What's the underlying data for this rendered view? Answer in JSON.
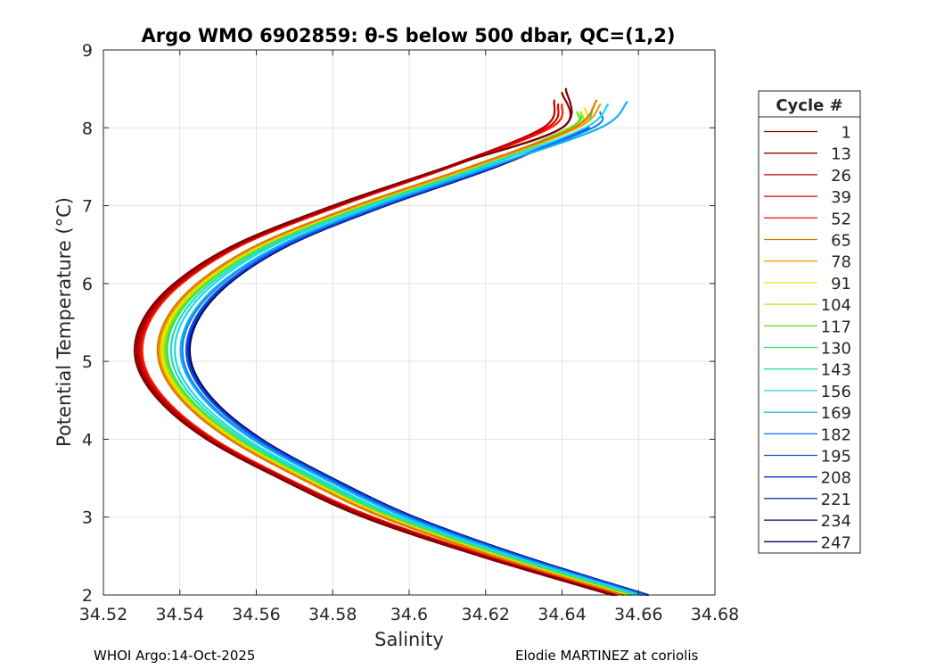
{
  "chart_data": {
    "type": "line",
    "title": "Argo WMO 6902859: θ-S below 500 dbar,  QC=(1,2)",
    "xlabel": "Salinity",
    "ylabel": "Potential Temperature (°C)",
    "xlim": [
      34.52,
      34.68
    ],
    "ylim": [
      2,
      9
    ],
    "xticks": [
      34.52,
      34.54,
      34.56,
      34.58,
      34.6,
      34.62,
      34.64,
      34.66,
      34.68
    ],
    "xtick_labels": [
      "34.52",
      "34.54",
      "34.56",
      "34.58",
      "34.6",
      "34.62",
      "34.64",
      "34.66",
      "34.68"
    ],
    "yticks": [
      2,
      3,
      4,
      5,
      6,
      7,
      8,
      9
    ],
    "ytick_labels": [
      "2",
      "3",
      "4",
      "5",
      "6",
      "7",
      "8",
      "9"
    ],
    "grid": true,
    "legend_title": "Cycle #",
    "legend_position": "right-outside",
    "series": [
      {
        "name": "1",
        "color": "#800000",
        "points": [
          [
            34.653,
            2.0
          ],
          [
            34.6185,
            2.5
          ],
          [
            34.588,
            3.0
          ],
          [
            34.566,
            3.5
          ],
          [
            34.547,
            4.0
          ],
          [
            34.5345,
            4.5
          ],
          [
            34.5285,
            5.0
          ],
          [
            34.53,
            5.5
          ],
          [
            34.5385,
            6.0
          ],
          [
            34.5545,
            6.5
          ],
          [
            34.58,
            7.0
          ],
          [
            34.61,
            7.5
          ],
          [
            34.64,
            8.0
          ],
          [
            34.641,
            8.5
          ]
        ]
      },
      {
        "name": "13",
        "color": "#9b0000",
        "points": [
          [
            34.6535,
            2.0
          ],
          [
            34.619,
            2.5
          ],
          [
            34.589,
            3.0
          ],
          [
            34.5665,
            3.5
          ],
          [
            34.5475,
            4.0
          ],
          [
            34.535,
            4.5
          ],
          [
            34.529,
            5.0
          ],
          [
            34.5305,
            5.5
          ],
          [
            34.539,
            6.0
          ],
          [
            34.555,
            6.5
          ],
          [
            34.581,
            7.0
          ],
          [
            34.61,
            7.5
          ],
          [
            34.64,
            8.0
          ],
          [
            34.64,
            8.45
          ]
        ]
      },
      {
        "name": "26",
        "color": "#c00000",
        "points": [
          [
            34.654,
            2.0
          ],
          [
            34.6195,
            2.5
          ],
          [
            34.5895,
            3.0
          ],
          [
            34.567,
            3.5
          ],
          [
            34.548,
            4.0
          ],
          [
            34.5355,
            4.5
          ],
          [
            34.5295,
            5.0
          ],
          [
            34.531,
            5.5
          ],
          [
            34.5395,
            6.0
          ],
          [
            34.5555,
            6.5
          ],
          [
            34.581,
            7.0
          ],
          [
            34.61,
            7.5
          ],
          [
            34.635,
            8.0
          ],
          [
            34.638,
            8.35
          ]
        ]
      },
      {
        "name": "39",
        "color": "#e00000",
        "points": [
          [
            34.654,
            2.0
          ],
          [
            34.62,
            2.5
          ],
          [
            34.59,
            3.0
          ],
          [
            34.5675,
            3.5
          ],
          [
            34.5485,
            4.0
          ],
          [
            34.536,
            4.5
          ],
          [
            34.53,
            5.0
          ],
          [
            34.5315,
            5.5
          ],
          [
            34.54,
            6.0
          ],
          [
            34.556,
            6.5
          ],
          [
            34.5815,
            7.0
          ],
          [
            34.611,
            7.5
          ],
          [
            34.636,
            8.0
          ],
          [
            34.639,
            8.3
          ]
        ]
      },
      {
        "name": "52",
        "color": "#ff2000",
        "points": [
          [
            34.6545,
            2.0
          ],
          [
            34.6205,
            2.5
          ],
          [
            34.5905,
            3.0
          ],
          [
            34.568,
            3.5
          ],
          [
            34.549,
            4.0
          ],
          [
            34.5365,
            4.5
          ],
          [
            34.5305,
            5.0
          ],
          [
            34.532,
            5.5
          ],
          [
            34.5405,
            6.0
          ],
          [
            34.5565,
            6.5
          ],
          [
            34.582,
            7.0
          ],
          [
            34.611,
            7.5
          ],
          [
            34.637,
            8.0
          ],
          [
            34.64,
            8.3
          ]
        ]
      },
      {
        "name": "65",
        "color": "#d97b00",
        "points": [
          [
            34.656,
            2.0
          ],
          [
            34.622,
            2.5
          ],
          [
            34.593,
            3.0
          ],
          [
            34.5715,
            3.5
          ],
          [
            34.553,
            4.0
          ],
          [
            34.5405,
            4.5
          ],
          [
            34.5345,
            5.0
          ],
          [
            34.536,
            5.5
          ],
          [
            34.5445,
            6.0
          ],
          [
            34.5605,
            6.5
          ],
          [
            34.586,
            7.0
          ],
          [
            34.616,
            7.5
          ],
          [
            34.643,
            8.0
          ],
          [
            34.649,
            8.35
          ]
        ]
      },
      {
        "name": "78",
        "color": "#f0a000",
        "points": [
          [
            34.656,
            2.0
          ],
          [
            34.6225,
            2.5
          ],
          [
            34.5935,
            3.0
          ],
          [
            34.572,
            3.5
          ],
          [
            34.5535,
            4.0
          ],
          [
            34.541,
            4.5
          ],
          [
            34.535,
            5.0
          ],
          [
            34.5365,
            5.5
          ],
          [
            34.545,
            6.0
          ],
          [
            34.561,
            6.5
          ],
          [
            34.5865,
            7.0
          ],
          [
            34.6165,
            7.5
          ],
          [
            34.644,
            8.0
          ],
          [
            34.65,
            8.3
          ]
        ]
      },
      {
        "name": "91",
        "color": "#ffe000",
        "points": [
          [
            34.6565,
            2.0
          ],
          [
            34.623,
            2.5
          ],
          [
            34.594,
            3.0
          ],
          [
            34.5725,
            3.5
          ],
          [
            34.554,
            4.0
          ],
          [
            34.5415,
            4.5
          ],
          [
            34.5355,
            5.0
          ],
          [
            34.537,
            5.5
          ],
          [
            34.5455,
            6.0
          ],
          [
            34.5615,
            6.5
          ],
          [
            34.587,
            7.0
          ],
          [
            34.617,
            7.5
          ],
          [
            34.644,
            8.0
          ],
          [
            34.646,
            8.25
          ]
        ]
      },
      {
        "name": "104",
        "color": "#b0f000",
        "points": [
          [
            34.657,
            2.0
          ],
          [
            34.6235,
            2.5
          ],
          [
            34.5945,
            3.0
          ],
          [
            34.573,
            3.5
          ],
          [
            34.5545,
            4.0
          ],
          [
            34.542,
            4.5
          ],
          [
            34.536,
            5.0
          ],
          [
            34.5375,
            5.5
          ],
          [
            34.546,
            6.0
          ],
          [
            34.562,
            6.5
          ],
          [
            34.587,
            7.0
          ],
          [
            34.617,
            7.5
          ],
          [
            34.643,
            8.0
          ],
          [
            34.645,
            8.2
          ]
        ]
      },
      {
        "name": "117",
        "color": "#70e020",
        "points": [
          [
            34.6575,
            2.0
          ],
          [
            34.624,
            2.5
          ],
          [
            34.595,
            3.0
          ],
          [
            34.5735,
            3.5
          ],
          [
            34.555,
            4.0
          ],
          [
            34.5425,
            4.5
          ],
          [
            34.5365,
            5.0
          ],
          [
            34.538,
            5.5
          ],
          [
            34.5465,
            6.0
          ],
          [
            34.5625,
            6.5
          ],
          [
            34.5875,
            7.0
          ],
          [
            34.617,
            7.5
          ],
          [
            34.642,
            8.0
          ],
          [
            34.644,
            8.2
          ]
        ]
      },
      {
        "name": "130",
        "color": "#30e060",
        "points": [
          [
            34.658,
            2.0
          ],
          [
            34.6245,
            2.5
          ],
          [
            34.5955,
            3.0
          ],
          [
            34.574,
            3.5
          ],
          [
            34.5555,
            4.0
          ],
          [
            34.543,
            4.5
          ],
          [
            34.537,
            5.0
          ],
          [
            34.5385,
            5.5
          ],
          [
            34.547,
            6.0
          ],
          [
            34.563,
            6.5
          ],
          [
            34.588,
            7.0
          ],
          [
            34.6175,
            7.5
          ],
          [
            34.642,
            8.0
          ],
          [
            34.645,
            8.2
          ]
        ]
      },
      {
        "name": "143",
        "color": "#20e0b0",
        "points": [
          [
            34.659,
            2.0
          ],
          [
            34.6255,
            2.5
          ],
          [
            34.5965,
            3.0
          ],
          [
            34.575,
            3.5
          ],
          [
            34.5565,
            4.0
          ],
          [
            34.544,
            4.5
          ],
          [
            34.538,
            5.0
          ],
          [
            34.5395,
            5.5
          ],
          [
            34.548,
            6.0
          ],
          [
            34.564,
            6.5
          ],
          [
            34.589,
            7.0
          ],
          [
            34.6185,
            7.5
          ],
          [
            34.644,
            8.0
          ],
          [
            34.648,
            8.25
          ]
        ]
      },
      {
        "name": "156",
        "color": "#20d8e8",
        "points": [
          [
            34.66,
            2.0
          ],
          [
            34.6265,
            2.5
          ],
          [
            34.5975,
            3.0
          ],
          [
            34.576,
            3.5
          ],
          [
            34.5575,
            4.0
          ],
          [
            34.545,
            4.5
          ],
          [
            34.539,
            5.0
          ],
          [
            34.5405,
            5.5
          ],
          [
            34.549,
            6.0
          ],
          [
            34.565,
            6.5
          ],
          [
            34.59,
            7.0
          ],
          [
            34.6195,
            7.5
          ],
          [
            34.646,
            8.0
          ],
          [
            34.652,
            8.3
          ]
        ]
      },
      {
        "name": "169",
        "color": "#10b0f0",
        "points": [
          [
            34.6605,
            2.0
          ],
          [
            34.6275,
            2.5
          ],
          [
            34.599,
            3.0
          ],
          [
            34.5775,
            3.5
          ],
          [
            34.559,
            4.0
          ],
          [
            34.5465,
            4.5
          ],
          [
            34.5405,
            5.0
          ],
          [
            34.542,
            5.5
          ],
          [
            34.5505,
            6.0
          ],
          [
            34.5665,
            6.5
          ],
          [
            34.5915,
            7.0
          ],
          [
            34.621,
            7.5
          ],
          [
            34.65,
            8.0
          ],
          [
            34.657,
            8.33
          ]
        ]
      },
      {
        "name": "182",
        "color": "#1080f0",
        "points": [
          [
            34.661,
            2.0
          ],
          [
            34.628,
            2.5
          ],
          [
            34.5995,
            3.0
          ],
          [
            34.578,
            3.5
          ],
          [
            34.5595,
            4.0
          ],
          [
            34.547,
            4.5
          ],
          [
            34.541,
            5.0
          ],
          [
            34.5425,
            5.5
          ],
          [
            34.551,
            6.0
          ],
          [
            34.567,
            6.5
          ],
          [
            34.592,
            7.0
          ],
          [
            34.6215,
            7.5
          ],
          [
            34.648,
            8.0
          ],
          [
            34.65,
            8.2
          ]
        ]
      },
      {
        "name": "195",
        "color": "#1050e0",
        "points": [
          [
            34.662,
            2.0
          ],
          [
            34.629,
            2.5
          ],
          [
            34.6005,
            3.0
          ],
          [
            34.579,
            3.5
          ],
          [
            34.5605,
            4.0
          ],
          [
            34.548,
            4.5
          ],
          [
            34.542,
            5.0
          ],
          [
            34.5435,
            5.5
          ],
          [
            34.552,
            6.0
          ],
          [
            34.568,
            6.5
          ],
          [
            34.593,
            7.0
          ],
          [
            34.622,
            7.5
          ],
          [
            34.647,
            8.0
          ]
        ]
      },
      {
        "name": "208",
        "color": "#0830c0",
        "points": [
          [
            34.662,
            2.0
          ],
          [
            34.6292,
            2.5
          ],
          [
            34.6008,
            3.0
          ],
          [
            34.5793,
            3.5
          ],
          [
            34.5608,
            4.0
          ],
          [
            34.5483,
            4.5
          ],
          [
            34.5423,
            5.0
          ],
          [
            34.5438,
            5.5
          ],
          [
            34.5523,
            6.0
          ],
          [
            34.5683,
            6.5
          ],
          [
            34.5933,
            7.0
          ],
          [
            34.6223,
            7.5
          ],
          [
            34.647,
            8.0
          ]
        ]
      },
      {
        "name": "221",
        "color": "#0020a0",
        "points": [
          [
            34.6622,
            2.0
          ],
          [
            34.6294,
            2.5
          ],
          [
            34.601,
            3.0
          ],
          [
            34.5795,
            3.5
          ],
          [
            34.561,
            4.0
          ],
          [
            34.5485,
            4.5
          ],
          [
            34.5425,
            5.0
          ],
          [
            34.544,
            5.5
          ],
          [
            34.5525,
            6.0
          ],
          [
            34.5685,
            6.5
          ],
          [
            34.5935,
            7.0
          ],
          [
            34.6225,
            7.5
          ],
          [
            34.647,
            8.0
          ]
        ]
      },
      {
        "name": "234",
        "color": "#001060",
        "points": [
          [
            34.6624,
            2.0
          ],
          [
            34.6296,
            2.5
          ],
          [
            34.6012,
            3.0
          ],
          [
            34.5797,
            3.5
          ],
          [
            34.5612,
            4.0
          ],
          [
            34.5487,
            4.5
          ],
          [
            34.5427,
            5.0
          ],
          [
            34.5442,
            5.5
          ],
          [
            34.5527,
            6.0
          ],
          [
            34.5687,
            6.5
          ],
          [
            34.5937,
            7.0
          ],
          [
            34.6227,
            7.5
          ],
          [
            34.647,
            8.0
          ]
        ]
      },
      {
        "name": "247",
        "color": "#000070",
        "points": [
          [
            34.6625,
            2.0
          ],
          [
            34.6298,
            2.5
          ],
          [
            34.6014,
            3.0
          ],
          [
            34.5799,
            3.5
          ],
          [
            34.5614,
            4.0
          ],
          [
            34.5489,
            4.5
          ],
          [
            34.5429,
            5.0
          ],
          [
            34.5444,
            5.5
          ],
          [
            34.5529,
            6.0
          ],
          [
            34.5689,
            6.5
          ],
          [
            34.5939,
            7.0
          ],
          [
            34.6229,
            7.5
          ],
          [
            34.647,
            8.0
          ]
        ]
      }
    ]
  },
  "footer": {
    "left": "WHOI Argo:14-Oct-2025",
    "right": "Elodie MARTINEZ at coriolis"
  }
}
